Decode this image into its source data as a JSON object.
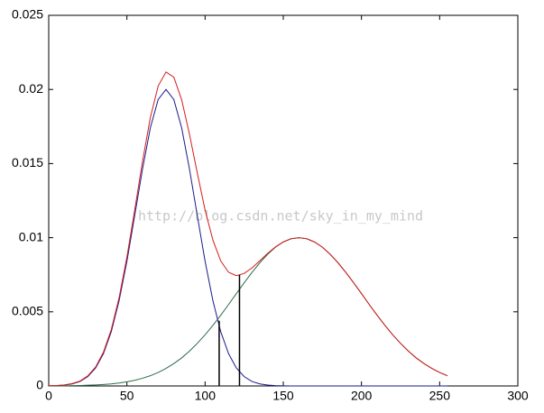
{
  "chart_data": {
    "type": "line",
    "watermark": "http://blog.csdn.net/sky_in_my_mind",
    "x": [
      0,
      5,
      10,
      15,
      20,
      25,
      30,
      35,
      40,
      45,
      50,
      55,
      60,
      65,
      70,
      75,
      80,
      85,
      90,
      95,
      100,
      105,
      110,
      115,
      120,
      125,
      130,
      135,
      140,
      145,
      150,
      155,
      160,
      165,
      170,
      175,
      180,
      185,
      190,
      195,
      200,
      205,
      210,
      215,
      220,
      225,
      230,
      235,
      240,
      245,
      250,
      255
    ],
    "series": [
      {
        "color": "#1a1a8c",
        "values": [
          1e-05,
          2e-05,
          6e-05,
          0.00014,
          0.0003,
          0.00063,
          0.00121,
          0.00218,
          0.00366,
          0.00575,
          0.00841,
          0.0115,
          0.01464,
          0.01742,
          0.01932,
          0.02,
          0.01932,
          0.01742,
          0.01464,
          0.0115,
          0.00841,
          0.00575,
          0.00366,
          0.00218,
          0.00121,
          0.00063,
          0.0003,
          0.00014,
          6e-05,
          2e-05,
          1e-05,
          0,
          0,
          0,
          0,
          0,
          0,
          0,
          0,
          0,
          0,
          0,
          0,
          0,
          0,
          0,
          0,
          0,
          0,
          0,
          0,
          0
        ]
      },
      {
        "color": "#2e6b4a",
        "values": [
          1e-05,
          1e-05,
          1e-05,
          2e-05,
          3e-05,
          5e-05,
          7e-05,
          0.0001,
          0.00014,
          0.0002,
          0.00028,
          0.00038,
          0.00052,
          0.00069,
          0.00091,
          0.00118,
          0.00151,
          0.00189,
          0.00235,
          0.00287,
          0.00345,
          0.00409,
          0.00477,
          0.00549,
          0.00623,
          0.00696,
          0.00766,
          0.00831,
          0.00888,
          0.00936,
          0.00971,
          0.00993,
          0.01,
          0.00993,
          0.00971,
          0.00936,
          0.00888,
          0.00831,
          0.00766,
          0.00696,
          0.00623,
          0.00549,
          0.00477,
          0.00409,
          0.00345,
          0.00287,
          0.00235,
          0.00189,
          0.00151,
          0.00118,
          0.00091,
          0.00069
        ]
      },
      {
        "color": "#d41c1c",
        "values": [
          2e-05,
          3e-05,
          7e-05,
          0.00016,
          0.00033,
          0.00068,
          0.00128,
          0.00228,
          0.0038,
          0.00595,
          0.00869,
          0.01188,
          0.01516,
          0.01811,
          0.02023,
          0.02118,
          0.02083,
          0.01931,
          0.01699,
          0.01437,
          0.01186,
          0.00984,
          0.00843,
          0.00767,
          0.00744,
          0.00759,
          0.00796,
          0.00845,
          0.00894,
          0.00938,
          0.00972,
          0.00993,
          0.01,
          0.00993,
          0.00971,
          0.00936,
          0.00888,
          0.00831,
          0.00766,
          0.00696,
          0.00623,
          0.00549,
          0.00477,
          0.00409,
          0.00345,
          0.00287,
          0.00235,
          0.00189,
          0.00151,
          0.00118,
          0.00091,
          0.00069
        ]
      }
    ],
    "vlines": [
      {
        "x": 109,
        "y": 0.0044,
        "color": "#000000"
      },
      {
        "x": 122,
        "y": 0.0075,
        "color": "#000000"
      }
    ],
    "xlim": [
      0,
      300
    ],
    "xticks": [
      0,
      50,
      100,
      150,
      200,
      250,
      300
    ],
    "ylim": [
      0,
      0.025
    ],
    "yticks": [
      0,
      0.005,
      0.01,
      0.015,
      0.02,
      0.025
    ]
  }
}
